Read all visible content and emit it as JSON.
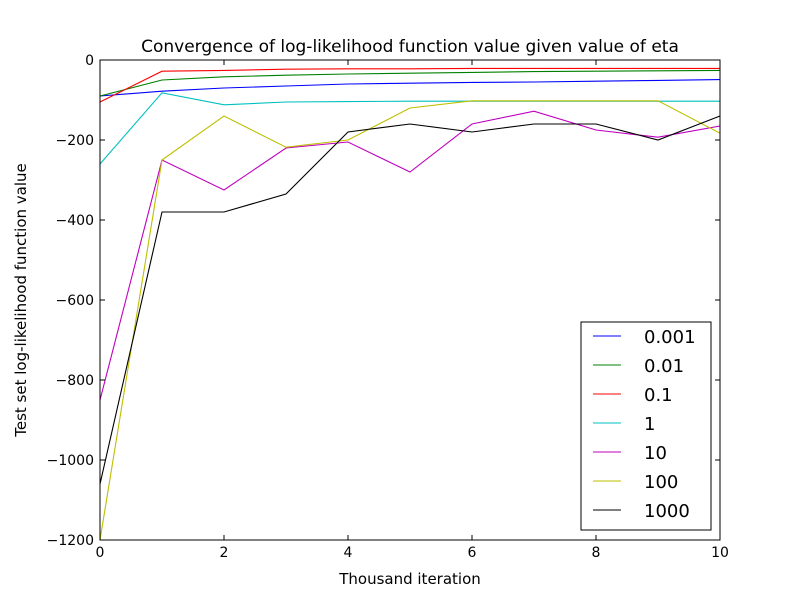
{
  "chart_data": {
    "type": "line",
    "title": "Convergence of log-likelihood function value given value of eta",
    "xlabel": "Thousand iteration",
    "ylabel": "Test set log-likelihood function value",
    "xlim": [
      0,
      10
    ],
    "ylim": [
      -1200,
      0
    ],
    "xticks": [
      0,
      2,
      4,
      6,
      8,
      10
    ],
    "yticks": [
      0,
      -200,
      -400,
      -600,
      -800,
      -1000,
      -1200
    ],
    "grid": false,
    "legend_position": "bottom-right",
    "x": [
      0,
      1,
      2,
      3,
      4,
      5,
      6,
      7,
      8,
      9,
      10
    ],
    "series": [
      {
        "name": "0.001",
        "color": "#0000ff",
        "values": [
          -90,
          -78,
          -70,
          -65,
          -60,
          -58,
          -56,
          -55,
          -53,
          -51,
          -49
        ]
      },
      {
        "name": "0.01",
        "color": "#008000",
        "values": [
          -90,
          -50,
          -42,
          -38,
          -35,
          -33,
          -31,
          -29,
          -28,
          -27,
          -26
        ]
      },
      {
        "name": "0.1",
        "color": "#ff0000",
        "values": [
          -105,
          -28,
          -26,
          -23,
          -22,
          -22,
          -21,
          -21,
          -21,
          -21,
          -21
        ]
      },
      {
        "name": "1",
        "color": "#00bfbf",
        "values": [
          -260,
          -82,
          -112,
          -105,
          -104,
          -103,
          -103,
          -103,
          -103,
          -103,
          -103
        ]
      },
      {
        "name": "10",
        "color": "#bf00bf",
        "values": [
          -850,
          -250,
          -325,
          -220,
          -205,
          -280,
          -160,
          -128,
          -175,
          -193,
          -165
        ]
      },
      {
        "name": "100",
        "color": "#bfbf00",
        "values": [
          -1200,
          -250,
          -140,
          -218,
          -200,
          -120,
          -102,
          -102,
          -102,
          -102,
          -183
        ]
      },
      {
        "name": "1000",
        "color": "#000000",
        "values": [
          -1060,
          -380,
          -380,
          -335,
          -180,
          -160,
          -180,
          -160,
          -160,
          -200,
          -140
        ]
      }
    ]
  }
}
